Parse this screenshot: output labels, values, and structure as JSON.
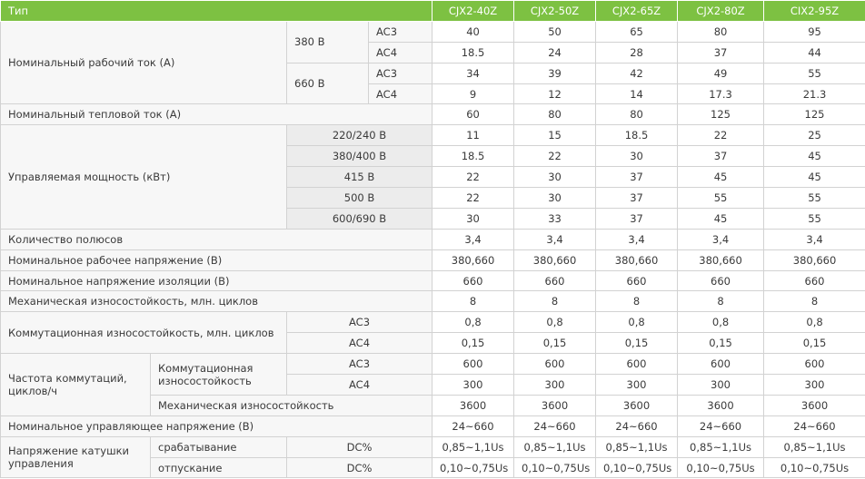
{
  "table": {
    "header": [
      "Тип",
      "CJX2-40Z",
      "CJX2-50Z",
      "CJX2-65Z",
      "CJX2-80Z",
      "CIX2-95Z"
    ],
    "rows": [
      {
        "cells": [
          "Номинальный рабочий ток (А)",
          "380 В",
          "AC3"
        ],
        "values": [
          40,
          50,
          65,
          80,
          95
        ]
      },
      {
        "cells": [
          "AC4"
        ],
        "values": [
          18.5,
          24,
          28,
          37,
          44
        ]
      },
      {
        "cells": [
          "660 В",
          "AC3"
        ],
        "values": [
          34,
          39,
          42,
          49,
          55
        ]
      },
      {
        "cells": [
          "AC4"
        ],
        "values": [
          9,
          12,
          14,
          17.3,
          21.3
        ]
      },
      {
        "cells": [
          "Номинальный тепловой ток (А)"
        ],
        "values": [
          60,
          80,
          80,
          125,
          125
        ]
      },
      {
        "cells": [
          "Управляемая мощность (кВт)",
          "220/240 В"
        ],
        "values": [
          11,
          15,
          18.5,
          22,
          25
        ]
      },
      {
        "cells": [
          "380/400 В"
        ],
        "values": [
          18.5,
          22,
          30,
          37,
          45
        ]
      },
      {
        "cells": [
          "415 В"
        ],
        "values": [
          22,
          30,
          37,
          45,
          45
        ]
      },
      {
        "cells": [
          "500 В"
        ],
        "values": [
          22,
          30,
          37,
          55,
          55
        ]
      },
      {
        "cells": [
          "600/690 В"
        ],
        "values": [
          30,
          33,
          37,
          45,
          55
        ]
      },
      {
        "cells": [
          "Количество полюсов"
        ],
        "values": [
          "3,4",
          "3,4",
          "3,4",
          "3,4",
          "3,4"
        ]
      },
      {
        "cells": [
          "Номинальное рабочее напряжение (В)"
        ],
        "values": [
          "380,660",
          "380,660",
          "380,660",
          "380,660",
          "380,660"
        ]
      },
      {
        "cells": [
          "Номинальное напряжение изоляции (В)"
        ],
        "values": [
          660,
          660,
          660,
          660,
          660
        ]
      },
      {
        "cells": [
          "Механическая износостойкость, млн. циклов"
        ],
        "values": [
          8,
          8,
          8,
          8,
          8
        ]
      },
      {
        "cells": [
          "Коммутационная износостойкость, млн. циклов",
          "AC3"
        ],
        "values": [
          "0,8",
          "0,8",
          "0,8",
          "0,8",
          "0,8"
        ]
      },
      {
        "cells": [
          "AC4"
        ],
        "values": [
          "0,15",
          "0,15",
          "0,15",
          "0,15",
          "0,15"
        ]
      },
      {
        "cells": [
          "Частота коммутаций, циклов/ч",
          "Коммутационная износостойкость",
          "AC3"
        ],
        "values": [
          600,
          600,
          600,
          600,
          600
        ]
      },
      {
        "cells": [
          "AC4"
        ],
        "values": [
          300,
          300,
          300,
          300,
          300
        ]
      },
      {
        "cells": [
          "Механическая износостойкость"
        ],
        "values": [
          3600,
          3600,
          3600,
          3600,
          3600
        ]
      },
      {
        "cells": [
          "Номинальное управляющее напряжение (В)"
        ],
        "values": [
          "24~660",
          "24~660",
          "24~660",
          "24~660",
          "24~660"
        ]
      },
      {
        "cells": [
          "Напряжение катушки управления",
          "срабатывание",
          "DC%"
        ],
        "values": [
          "0,85~1,1Us",
          "0,85~1,1Us",
          "0,85~1,1Us",
          "0,85~1,1Us",
          "0,85~1,1Us"
        ]
      },
      {
        "cells": [
          "отпускание",
          "DC%"
        ],
        "values": [
          "0,10~0,75Us",
          "0,10~0,75Us",
          "0,10~0,75Us",
          "0,10~0,75Us",
          "0,10~0,75Us"
        ]
      }
    ]
  }
}
